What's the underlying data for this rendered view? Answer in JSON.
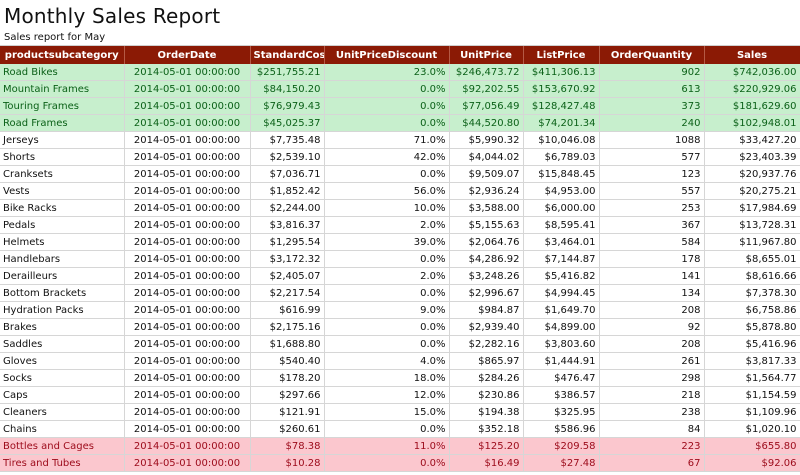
{
  "report": {
    "title": "Monthly Sales Report",
    "subtitle": "Sales report for May"
  },
  "colors": {
    "header_bg": "#8b1a05",
    "header_text": "#ffffff",
    "top_highlight_bg": "#c7efcd",
    "top_highlight_text": "#0b6118",
    "bottom_highlight_bg": "#fbc7ce",
    "bottom_highlight_text": "#9c0a1a"
  },
  "table": {
    "columns": [
      "productsubcategory",
      "OrderDate",
      "StandardCost",
      "UnitPriceDiscount",
      "UnitPrice",
      "ListPrice",
      "OrderQuantity",
      "Sales"
    ],
    "rows": [
      {
        "highlight": "green",
        "cells": [
          "Road Bikes",
          "2014-05-01 00:00:00",
          "$251,755.21",
          "23.0%",
          "$246,473.72",
          "$411,306.13",
          "902",
          "$742,036.00"
        ]
      },
      {
        "highlight": "green",
        "cells": [
          "Mountain Frames",
          "2014-05-01 00:00:00",
          "$84,150.20",
          "0.0%",
          "$92,202.55",
          "$153,670.92",
          "613",
          "$220,929.06"
        ]
      },
      {
        "highlight": "green",
        "cells": [
          "Touring Frames",
          "2014-05-01 00:00:00",
          "$76,979.43",
          "0.0%",
          "$77,056.49",
          "$128,427.48",
          "373",
          "$181,629.60"
        ]
      },
      {
        "highlight": "green",
        "cells": [
          "Road Frames",
          "2014-05-01 00:00:00",
          "$45,025.37",
          "0.0%",
          "$44,520.80",
          "$74,201.34",
          "240",
          "$102,948.01"
        ]
      },
      {
        "highlight": "none",
        "cells": [
          "Jerseys",
          "2014-05-01 00:00:00",
          "$7,735.48",
          "71.0%",
          "$5,990.32",
          "$10,046.08",
          "1088",
          "$33,427.20"
        ]
      },
      {
        "highlight": "none",
        "cells": [
          "Shorts",
          "2014-05-01 00:00:00",
          "$2,539.10",
          "42.0%",
          "$4,044.02",
          "$6,789.03",
          "577",
          "$23,403.39"
        ]
      },
      {
        "highlight": "none",
        "cells": [
          "Cranksets",
          "2014-05-01 00:00:00",
          "$7,036.71",
          "0.0%",
          "$9,509.07",
          "$15,848.45",
          "123",
          "$20,937.76"
        ]
      },
      {
        "highlight": "none",
        "cells": [
          "Vests",
          "2014-05-01 00:00:00",
          "$1,852.42",
          "56.0%",
          "$2,936.24",
          "$4,953.00",
          "557",
          "$20,275.21"
        ]
      },
      {
        "highlight": "none",
        "cells": [
          "Bike Racks",
          "2014-05-01 00:00:00",
          "$2,244.00",
          "10.0%",
          "$3,588.00",
          "$6,000.00",
          "253",
          "$17,984.69"
        ]
      },
      {
        "highlight": "none",
        "cells": [
          "Pedals",
          "2014-05-01 00:00:00",
          "$3,816.37",
          "2.0%",
          "$5,155.63",
          "$8,595.41",
          "367",
          "$13,728.31"
        ]
      },
      {
        "highlight": "none",
        "cells": [
          "Helmets",
          "2014-05-01 00:00:00",
          "$1,295.54",
          "39.0%",
          "$2,064.76",
          "$3,464.01",
          "584",
          "$11,967.80"
        ]
      },
      {
        "highlight": "none",
        "cells": [
          "Handlebars",
          "2014-05-01 00:00:00",
          "$3,172.32",
          "0.0%",
          "$4,286.92",
          "$7,144.87",
          "178",
          "$8,655.01"
        ]
      },
      {
        "highlight": "none",
        "cells": [
          "Derailleurs",
          "2014-05-01 00:00:00",
          "$2,405.07",
          "2.0%",
          "$3,248.26",
          "$5,416.82",
          "141",
          "$8,616.66"
        ]
      },
      {
        "highlight": "none",
        "cells": [
          "Bottom Brackets",
          "2014-05-01 00:00:00",
          "$2,217.54",
          "0.0%",
          "$2,996.67",
          "$4,994.45",
          "134",
          "$7,378.30"
        ]
      },
      {
        "highlight": "none",
        "cells": [
          "Hydration Packs",
          "2014-05-01 00:00:00",
          "$616.99",
          "9.0%",
          "$984.87",
          "$1,649.70",
          "208",
          "$6,758.86"
        ]
      },
      {
        "highlight": "none",
        "cells": [
          "Brakes",
          "2014-05-01 00:00:00",
          "$2,175.16",
          "0.0%",
          "$2,939.40",
          "$4,899.00",
          "92",
          "$5,878.80"
        ]
      },
      {
        "highlight": "none",
        "cells": [
          "Saddles",
          "2014-05-01 00:00:00",
          "$1,688.80",
          "0.0%",
          "$2,282.16",
          "$3,803.60",
          "208",
          "$5,416.96"
        ]
      },
      {
        "highlight": "none",
        "cells": [
          "Gloves",
          "2014-05-01 00:00:00",
          "$540.40",
          "4.0%",
          "$865.97",
          "$1,444.91",
          "261",
          "$3,817.33"
        ]
      },
      {
        "highlight": "none",
        "cells": [
          "Socks",
          "2014-05-01 00:00:00",
          "$178.20",
          "18.0%",
          "$284.26",
          "$476.47",
          "298",
          "$1,564.77"
        ]
      },
      {
        "highlight": "none",
        "cells": [
          "Caps",
          "2014-05-01 00:00:00",
          "$297.66",
          "12.0%",
          "$230.86",
          "$386.57",
          "218",
          "$1,154.59"
        ]
      },
      {
        "highlight": "none",
        "cells": [
          "Cleaners",
          "2014-05-01 00:00:00",
          "$121.91",
          "15.0%",
          "$194.38",
          "$325.95",
          "238",
          "$1,109.96"
        ]
      },
      {
        "highlight": "none",
        "cells": [
          "Chains",
          "2014-05-01 00:00:00",
          "$260.61",
          "0.0%",
          "$352.18",
          "$586.96",
          "84",
          "$1,020.10"
        ]
      },
      {
        "highlight": "red",
        "cells": [
          "Bottles and Cages",
          "2014-05-01 00:00:00",
          "$78.38",
          "11.0%",
          "$125.20",
          "$209.58",
          "223",
          "$655.80"
        ]
      },
      {
        "highlight": "red",
        "cells": [
          "Tires and Tubes",
          "2014-05-01 00:00:00",
          "$10.28",
          "0.0%",
          "$16.49",
          "$27.48",
          "67",
          "$92.06"
        ]
      }
    ]
  }
}
